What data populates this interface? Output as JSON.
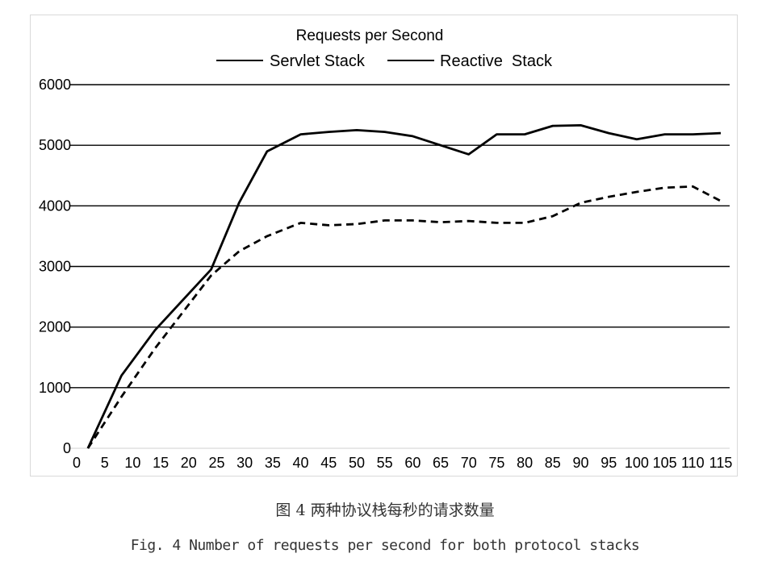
{
  "chart_data": {
    "type": "line",
    "title": "Requests per Second",
    "x": [
      0,
      2,
      8,
      14,
      19,
      24,
      29,
      34,
      40,
      45,
      50,
      55,
      60,
      65,
      70,
      75,
      80,
      85,
      90,
      95,
      100,
      105,
      110,
      115
    ],
    "xticks": [
      "0",
      "5",
      "10",
      "15",
      "20",
      "25",
      "30",
      "35",
      "40",
      "45",
      "50",
      "55",
      "60",
      "65",
      "70",
      "75",
      "80",
      "85",
      "90",
      "95",
      "100",
      "105",
      "110",
      "115"
    ],
    "yticks": [
      "0",
      "1000",
      "2000",
      "3000",
      "4000",
      "5000",
      "6000"
    ],
    "ylim": [
      0,
      6000
    ],
    "grid": "horizontal",
    "legend_position": "top-center",
    "series": [
      {
        "name": "Servlet Stack",
        "style": "solid",
        "color": "#000000",
        "values": [
          null,
          0,
          1200,
          1950,
          2450,
          2950,
          4050,
          4900,
          5180,
          5220,
          5250,
          5220,
          5150,
          5000,
          4850,
          5180,
          5180,
          5320,
          5330,
          5200,
          5100,
          5180,
          5180,
          5200
        ]
      },
      {
        "name": "Reactive  Stack",
        "style": "dashed",
        "color": "#000000",
        "values": [
          null,
          0,
          850,
          1650,
          2250,
          2850,
          3250,
          3500,
          3720,
          3680,
          3700,
          3760,
          3760,
          3730,
          3750,
          3720,
          3720,
          3830,
          4050,
          4150,
          4230,
          4300,
          4320,
          4080
        ]
      }
    ]
  },
  "caption": {
    "chinese": "图 4 两种协议栈每秒的请求数量",
    "english": "Fig. 4 Number of requests per second for both protocol stacks"
  }
}
